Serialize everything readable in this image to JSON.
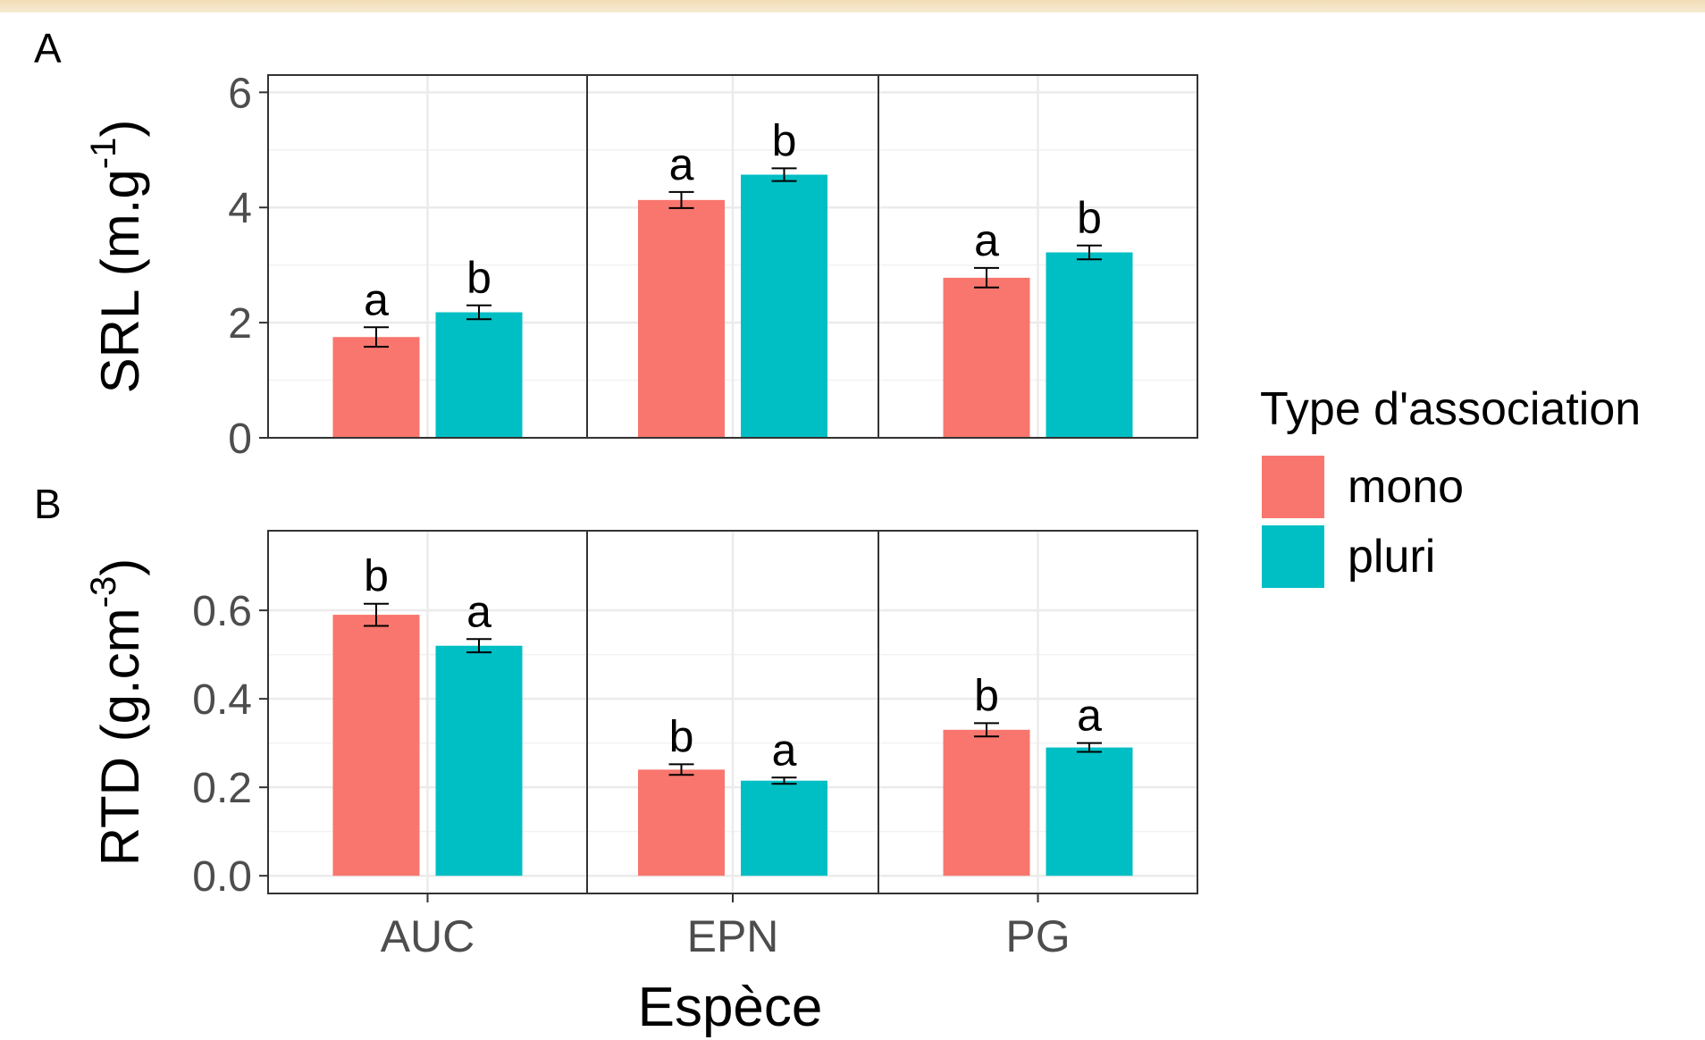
{
  "chart_data": {
    "type": "bar",
    "xlabel": "Espèce",
    "categories": [
      "AUC",
      "EPN",
      "PG"
    ],
    "legend": {
      "title": "Type d'association",
      "position": "right",
      "items": [
        {
          "label": "mono",
          "color": "#f8766d"
        },
        {
          "label": "pluri",
          "color": "#00bfc4"
        }
      ]
    },
    "grid": true,
    "panels": [
      {
        "tag": "A",
        "ylabel_main": "SRL (m.g",
        "ylabel_sup": "-1",
        "ylabel_close": ")",
        "ylim": [
          0,
          6.3
        ],
        "yticks": [
          0,
          2,
          4,
          6
        ],
        "ytick_labels": [
          "0",
          "2",
          "4",
          "6"
        ],
        "series": [
          {
            "name": "mono",
            "values": [
              1.75,
              4.13,
              2.78
            ],
            "errors": [
              0.17,
              0.14,
              0.17
            ],
            "letters": [
              "a",
              "a",
              "a"
            ]
          },
          {
            "name": "pluri",
            "values": [
              2.18,
              4.57,
              3.22
            ],
            "errors": [
              0.12,
              0.11,
              0.12
            ],
            "letters": [
              "b",
              "b",
              "b"
            ]
          }
        ]
      },
      {
        "tag": "B",
        "ylabel_main": "RTD (g.cm",
        "ylabel_sup": "-3",
        "ylabel_close": ")",
        "ylim": [
          -0.04,
          0.78
        ],
        "yticks": [
          0,
          0.2,
          0.4,
          0.6
        ],
        "ytick_labels": [
          "0.0",
          "0.2",
          "0.4",
          "0.6"
        ],
        "series": [
          {
            "name": "mono",
            "values": [
              0.59,
              0.24,
              0.33
            ],
            "errors": [
              0.025,
              0.012,
              0.015
            ],
            "letters": [
              "b",
              "b",
              "b"
            ]
          },
          {
            "name": "pluri",
            "values": [
              0.52,
              0.215,
              0.29
            ],
            "errors": [
              0.015,
              0.007,
              0.01
            ],
            "letters": [
              "a",
              "a",
              "a"
            ]
          }
        ]
      }
    ]
  }
}
